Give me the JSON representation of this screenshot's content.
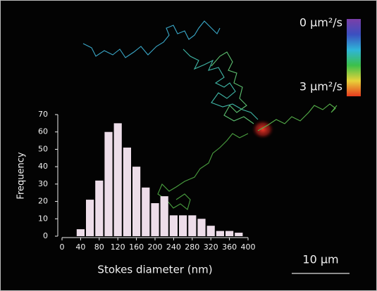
{
  "chart_data": {
    "type": "histogram",
    "x_label": "Stokes diameter (nm)",
    "y_label": "Frequency",
    "bins": [
      30,
      50,
      70,
      90,
      110,
      130,
      150,
      170,
      190,
      210,
      230,
      250,
      270,
      290,
      310,
      330,
      350,
      370,
      390
    ],
    "values": [
      4,
      21,
      32,
      60,
      65,
      51,
      40,
      28,
      19,
      23,
      12,
      12,
      12,
      10,
      6,
      3,
      3,
      2
    ],
    "color": "#eddde9",
    "xlim": [
      0,
      400
    ],
    "xticks": [
      0,
      40,
      80,
      120,
      160,
      200,
      240,
      280,
      320,
      360,
      400
    ],
    "ylim": [
      0,
      70
    ],
    "yticks": [
      0,
      10,
      20,
      30,
      40,
      50,
      60,
      70
    ]
  },
  "colorbar": {
    "labels": [
      "0 μm²/s",
      "3 μm²/s"
    ]
  },
  "scale_bar": {
    "label": "10 μm"
  }
}
